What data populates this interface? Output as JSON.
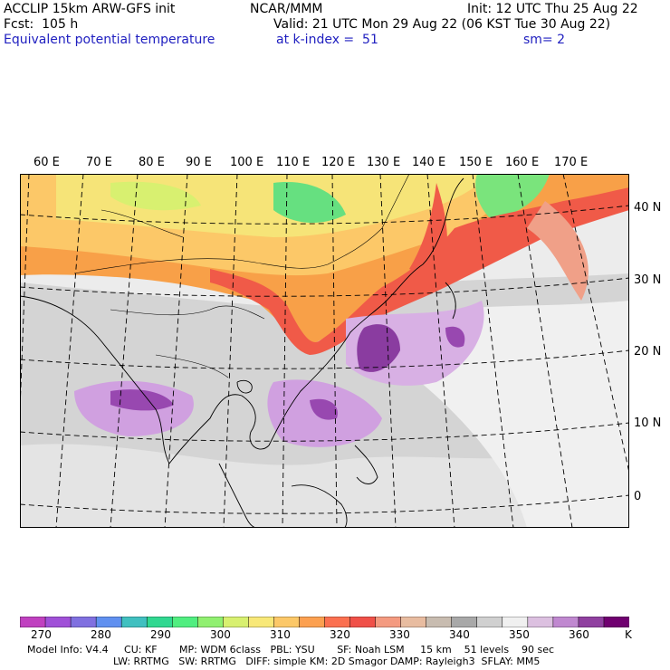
{
  "header": {
    "model": "ACCLIP 15km ARW-GFS init",
    "fcst": "Fcst:  105 h",
    "field": "Equivalent potential temperature",
    "center": "NCAR/MMM",
    "init": "Init: 12 UTC Thu 25 Aug 22",
    "valid": "Valid: 21 UTC Mon 29 Aug 22 (06 KST Tue 30 Aug 22)",
    "level": "at k-index =  51",
    "smooth": "sm= 2"
  },
  "map": {
    "lon_labels": [
      "60 E",
      "70 E",
      "80 E",
      "90 E",
      "100 E",
      "110 E",
      "120 E",
      "130 E",
      "140 E",
      "150 E",
      "160 E",
      "170 E"
    ],
    "lat_labels": [
      "40 N",
      "30 N",
      "20 N",
      "10 N",
      "0"
    ]
  },
  "colorbar": {
    "colors": [
      "#c040c0",
      "#a050d8",
      "#8070e0",
      "#6090f0",
      "#40c0c0",
      "#30d890",
      "#50ee80",
      "#90f070",
      "#d8f070",
      "#f8e878",
      "#fcc868",
      "#fca050",
      "#fb7050",
      "#f05048",
      "#f49a80",
      "#e8bca0",
      "#c8bcb0",
      "#a8a8a8",
      "#d0d0d0",
      "#f0f0f0",
      "#dcc0e0",
      "#c088d0",
      "#9040a0",
      "#700070"
    ],
    "labels": [
      "270",
      "280",
      "290",
      "300",
      "310",
      "320",
      "330",
      "340",
      "350",
      "360",
      "K"
    ],
    "unit": "K"
  },
  "footer": {
    "line1": "Model Info: V4.4     CU: KF       MP: WDM 6class   PBL: YSU       SF: Noah LSM     15 km    51 levels    90 sec",
    "line2": "LW: RRTMG   SW: RRTMG   DIFF: simple KM: 2D Smagor DAMP: Rayleigh3  SFLAY: MM5"
  }
}
